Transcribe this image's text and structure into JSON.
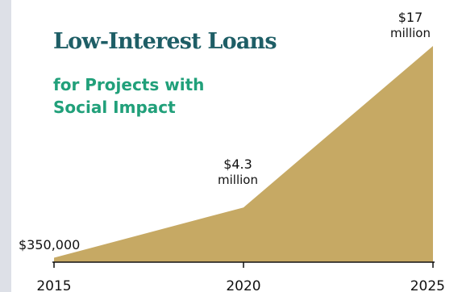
{
  "title": "Low-Interest Loans",
  "subtitle_lines": [
    "for Projects with",
    "Social Impact"
  ],
  "colors": {
    "area": "#c6a964",
    "title": "#1e5e66",
    "subtitle": "#21a07a",
    "axis": "#111111",
    "side_bar": "#dde0e7"
  },
  "chart_data": {
    "type": "area",
    "x": [
      2015,
      2020,
      2025
    ],
    "values": [
      350000,
      4300000,
      17000000
    ],
    "data_labels": [
      {
        "lines": [
          "$350,000"
        ]
      },
      {
        "lines": [
          "$4.3",
          "million"
        ]
      },
      {
        "lines": [
          "$17",
          "million"
        ]
      }
    ],
    "tick_labels": [
      "2015",
      "2020",
      "2025"
    ],
    "xlim": [
      2015,
      2025
    ],
    "ylim": [
      0,
      17000000
    ],
    "grid": false,
    "legend": "none"
  }
}
